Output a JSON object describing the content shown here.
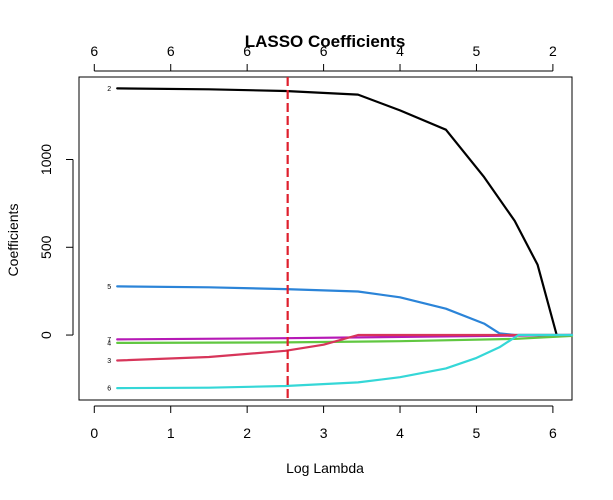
{
  "chart_data": {
    "type": "line",
    "title": "LASSO Coefficients",
    "xlabel": "Log Lambda",
    "ylabel": "Coefficients",
    "xlim": [
      -0.2,
      6.25
    ],
    "ylim": [
      -370,
      1470
    ],
    "x_ticks": [
      0,
      1,
      2,
      3,
      4,
      5,
      6
    ],
    "y_ticks": [
      0,
      500,
      1000
    ],
    "top_ticks": [
      {
        "x": 0,
        "label": "6"
      },
      {
        "x": 1,
        "label": "6"
      },
      {
        "x": 2,
        "label": "6"
      },
      {
        "x": 3,
        "label": "6"
      },
      {
        "x": 4,
        "label": "4"
      },
      {
        "x": 5,
        "label": "5"
      },
      {
        "x": 6,
        "label": "2"
      }
    ],
    "vline": {
      "x": 2.53,
      "color": "#DF1F2D",
      "style": "dashed"
    },
    "series": [
      {
        "label": "2",
        "color": "#000000",
        "x": [
          0.3,
          1.5,
          2.5,
          3.45,
          4.0,
          4.6,
          5.1,
          5.5,
          5.8,
          6.05
        ],
        "y": [
          1405,
          1400,
          1390,
          1370,
          1280,
          1170,
          900,
          650,
          400,
          0
        ]
      },
      {
        "label": "5",
        "color": "#2B84D8",
        "x": [
          0.3,
          1.5,
          2.5,
          3.45,
          4.0,
          4.6,
          5.1,
          5.3,
          5.5,
          6.25
        ],
        "y": [
          277,
          272,
          262,
          248,
          215,
          150,
          65,
          10,
          0,
          0
        ]
      },
      {
        "label": "7",
        "color": "#B619B6",
        "x": [
          0.3,
          2.5,
          6.25
        ],
        "y": [
          -25,
          -18,
          0
        ]
      },
      {
        "label": "4",
        "color": "#61C741",
        "x": [
          0.3,
          2.5,
          4.0,
          5.5,
          6.25
        ],
        "y": [
          -45,
          -42,
          -35,
          -22,
          -5
        ]
      },
      {
        "label": "3",
        "color": "#D7355A",
        "x": [
          0.3,
          1.5,
          2.5,
          3.0,
          3.45,
          4.0,
          6.25
        ],
        "y": [
          -145,
          -125,
          -90,
          -55,
          0,
          0,
          0
        ]
      },
      {
        "label": "6",
        "color": "#35D7D7",
        "x": [
          0.3,
          1.5,
          2.5,
          3.45,
          4.0,
          4.6,
          5.0,
          5.3,
          5.55,
          6.25
        ],
        "y": [
          -302,
          -300,
          -290,
          -270,
          -240,
          -190,
          -130,
          -70,
          0,
          0
        ]
      }
    ]
  }
}
